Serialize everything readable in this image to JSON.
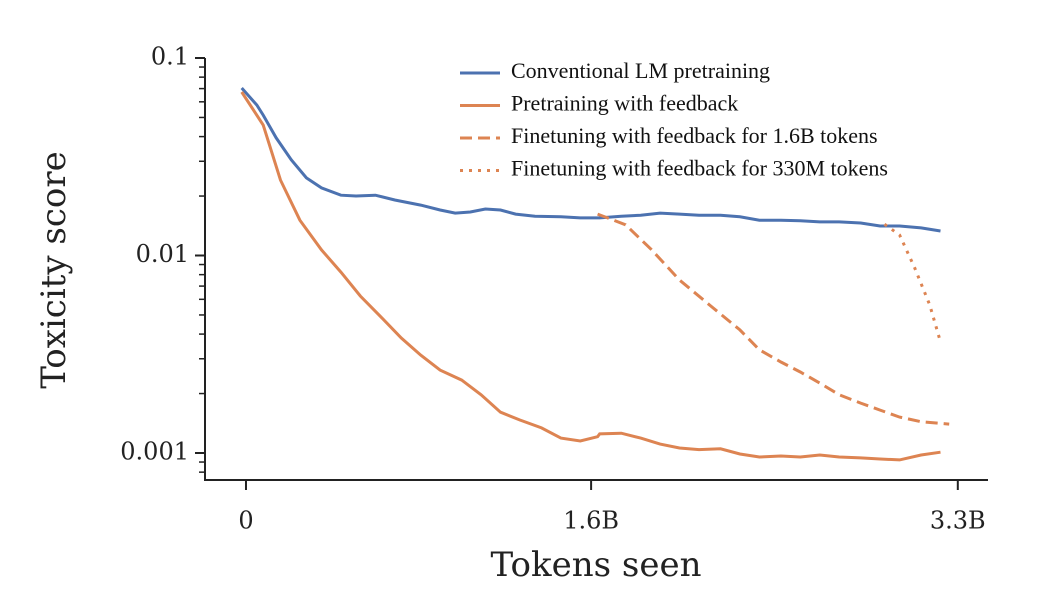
{
  "chart_data": {
    "type": "line",
    "x_label": "Tokens seen",
    "y_label": "Toxicity score",
    "xlim": [
      -0.19,
      3.44
    ],
    "xticks": [
      0,
      {
        "value": 1.6,
        "label": "1.6B"
      },
      {
        "value": 3.3,
        "label": "3.3B"
      }
    ],
    "ylim": [
      0.00073,
      0.1
    ],
    "yticks": [
      0.1,
      0.01,
      0.001
    ],
    "yscale": "log",
    "minor_ticks": true,
    "legend": "upper right",
    "series": [
      {
        "name": "Conventional LM pretraining",
        "color": "#4c72b0",
        "dash": "solid",
        "x": [
          -0.02,
          0.05,
          0.08,
          0.14,
          0.21,
          0.28,
          0.35,
          0.44,
          0.51,
          0.6,
          0.69,
          0.81,
          0.9,
          0.97,
          1.04,
          1.11,
          1.18,
          1.25,
          1.34,
          1.46,
          1.55,
          1.64,
          1.74,
          1.83,
          1.92,
          2.01,
          2.1,
          2.2,
          2.29,
          2.38,
          2.48,
          2.57,
          2.66,
          2.75,
          2.85,
          2.94,
          3.03,
          3.13,
          3.22
        ],
        "values": [
          0.0705,
          0.0578,
          0.0514,
          0.0394,
          0.0305,
          0.0247,
          0.022,
          0.0202,
          0.02,
          0.0202,
          0.0191,
          0.018,
          0.017,
          0.0164,
          0.0166,
          0.0172,
          0.017,
          0.0162,
          0.0158,
          0.0157,
          0.0155,
          0.0155,
          0.0158,
          0.016,
          0.0164,
          0.0162,
          0.016,
          0.016,
          0.0157,
          0.0151,
          0.0151,
          0.015,
          0.0148,
          0.0148,
          0.0146,
          0.0141,
          0.0141,
          0.0138,
          0.0133
        ]
      },
      {
        "name": "Pretraining with feedback",
        "color": "#dd8452",
        "dash": "solid",
        "x": [
          -0.02,
          0.08,
          0.16,
          0.25,
          0.35,
          0.44,
          0.53,
          0.63,
          0.72,
          0.81,
          0.9,
          1.0,
          1.09,
          1.18,
          1.27,
          1.37,
          1.46,
          1.55,
          1.63,
          1.64,
          1.74,
          1.83,
          1.92,
          2.01,
          2.1,
          2.2,
          2.29,
          2.38,
          2.48,
          2.57,
          2.66,
          2.75,
          2.85,
          2.94,
          3.03,
          3.13,
          3.22
        ],
        "values": [
          0.0673,
          0.0458,
          0.0241,
          0.0151,
          0.01067,
          0.00824,
          0.00624,
          0.00483,
          0.00382,
          0.00313,
          0.00263,
          0.00234,
          0.00197,
          0.00161,
          0.00147,
          0.00134,
          0.00119,
          0.00115,
          0.00121,
          0.00125,
          0.00126,
          0.00119,
          0.00111,
          0.00106,
          0.00104,
          0.00105,
          0.000988,
          0.000955,
          0.000966,
          0.000955,
          0.000977,
          0.000955,
          0.000944,
          0.000933,
          0.000923,
          0.000977,
          0.00101
        ]
      },
      {
        "name": "Finetuning with feedback for 1.6B tokens",
        "color": "#dd8452",
        "dash": "dashed",
        "x": [
          1.63,
          1.76,
          1.88,
          2.01,
          2.15,
          2.29,
          2.38,
          2.48,
          2.57,
          2.66,
          2.75,
          2.85,
          2.94,
          3.03,
          3.13,
          3.26
        ],
        "values": [
          0.0162,
          0.0143,
          0.0107,
          0.00752,
          0.00561,
          0.0042,
          0.00333,
          0.00289,
          0.00257,
          0.00226,
          0.00197,
          0.00179,
          0.00165,
          0.00152,
          0.00144,
          0.0014
        ]
      },
      {
        "name": "Finetuning with feedback for 330M tokens",
        "color": "#dd8452",
        "dash": "dotted",
        "x": [
          2.96,
          3.03,
          3.1,
          3.17,
          3.22
        ],
        "values": [
          0.0144,
          0.0127,
          0.00865,
          0.00561,
          0.00365
        ]
      }
    ]
  }
}
